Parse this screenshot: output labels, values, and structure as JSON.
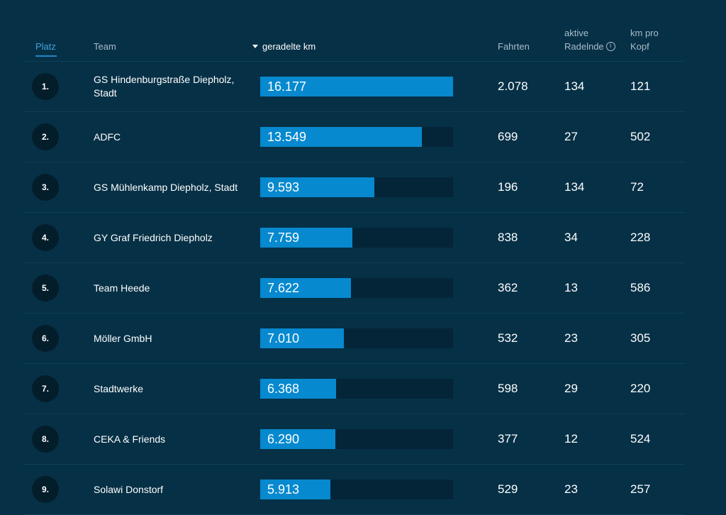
{
  "header": {
    "platz": "Platz",
    "team": "Team",
    "km": "geradelte km",
    "fahrten": "Fahrten",
    "aktive_line1": "aktive",
    "aktive_line2": "Radelnde",
    "kopf_line1": "km pro",
    "kopf_line2": "Kopf",
    "sort_icon": "sort-descending-icon",
    "info_icon": "info-icon"
  },
  "colors": {
    "background": "#063046",
    "bar": "#0689cf",
    "bar_track": "#042538",
    "active_header": "#43a2d8"
  },
  "max_km": 16177,
  "rows": [
    {
      "rank": "1.",
      "team": "GS Hindenburgstraße Diepholz, Stadt",
      "km": "16.177",
      "km_value": 16177,
      "fahrten": "2.078",
      "aktive": "134",
      "kopf": "121"
    },
    {
      "rank": "2.",
      "team": "ADFC",
      "km": "13.549",
      "km_value": 13549,
      "fahrten": "699",
      "aktive": "27",
      "kopf": "502"
    },
    {
      "rank": "3.",
      "team": "GS Mühlenkamp Diepholz, Stadt",
      "km": "9.593",
      "km_value": 9593,
      "fahrten": "196",
      "aktive": "134",
      "kopf": "72"
    },
    {
      "rank": "4.",
      "team": "GY Graf Friedrich Diepholz",
      "km": "7.759",
      "km_value": 7759,
      "fahrten": "838",
      "aktive": "34",
      "kopf": "228"
    },
    {
      "rank": "5.",
      "team": "Team Heede",
      "km": "7.622",
      "km_value": 7622,
      "fahrten": "362",
      "aktive": "13",
      "kopf": "586"
    },
    {
      "rank": "6.",
      "team": "Möller GmbH",
      "km": "7.010",
      "km_value": 7010,
      "fahrten": "532",
      "aktive": "23",
      "kopf": "305"
    },
    {
      "rank": "7.",
      "team": "Stadtwerke",
      "km": "6.368",
      "km_value": 6368,
      "fahrten": "598",
      "aktive": "29",
      "kopf": "220"
    },
    {
      "rank": "8.",
      "team": "CEKA & Friends",
      "km": "6.290",
      "km_value": 6290,
      "fahrten": "377",
      "aktive": "12",
      "kopf": "524"
    },
    {
      "rank": "9.",
      "team": "Solawi Donstorf",
      "km": "5.913",
      "km_value": 5913,
      "fahrten": "529",
      "aktive": "23",
      "kopf": "257"
    }
  ]
}
